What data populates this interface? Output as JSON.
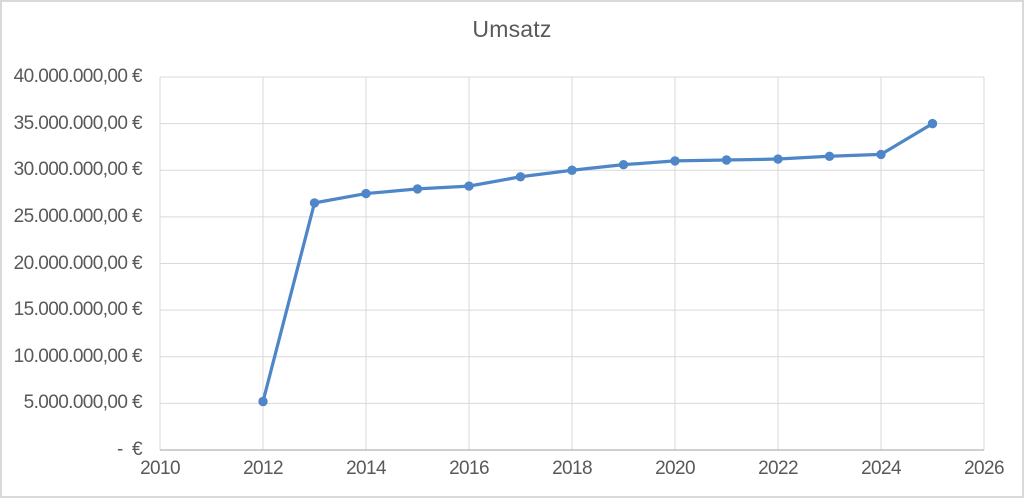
{
  "page": {
    "background": "#ffffff",
    "frame_border_color": "#d9d9d9"
  },
  "chart_data": {
    "type": "line",
    "title": "Umsatz",
    "series": [
      {
        "name": "Umsatz",
        "x": [
          2012,
          2013,
          2014,
          2015,
          2016,
          2017,
          2018,
          2019,
          2020,
          2021,
          2022,
          2023,
          2024,
          2025
        ],
        "values": [
          5200000,
          26500000,
          27500000,
          28000000,
          28300000,
          29300000,
          30000000,
          30600000,
          31000000,
          31100000,
          31200000,
          31500000,
          31700000,
          35000000
        ]
      }
    ],
    "xlabel": "",
    "ylabel": "",
    "xlim": [
      2010,
      2026
    ],
    "ylim": [
      0,
      40000000
    ],
    "x_tick_values": [
      2010,
      2012,
      2014,
      2016,
      2018,
      2020,
      2022,
      2024,
      2026
    ],
    "x_tick_labels": [
      "2010",
      "2012",
      "2014",
      "2016",
      "2018",
      "2020",
      "2022",
      "2024",
      "2026"
    ],
    "y_tick_values": [
      0,
      5000000,
      10000000,
      15000000,
      20000000,
      25000000,
      30000000,
      35000000,
      40000000
    ],
    "y_tick_labels": [
      "-  €",
      "5.000.000,00 €",
      "10.000.000,00 €",
      "15.000.000,00 €",
      "20.000.000,00 €",
      "25.000.000,00 €",
      "30.000.000,00 €",
      "35.000.000,00 €",
      "40.000.000,00 €"
    ],
    "grid": true,
    "legend": false,
    "marker": "circle",
    "colors": {
      "line": "#4e86c8",
      "marker": "#4e86c8",
      "gridline": "#d9d9d9",
      "axis_line": "#bfbfbf",
      "tick_text": "#595959",
      "title_text": "#595959"
    }
  }
}
